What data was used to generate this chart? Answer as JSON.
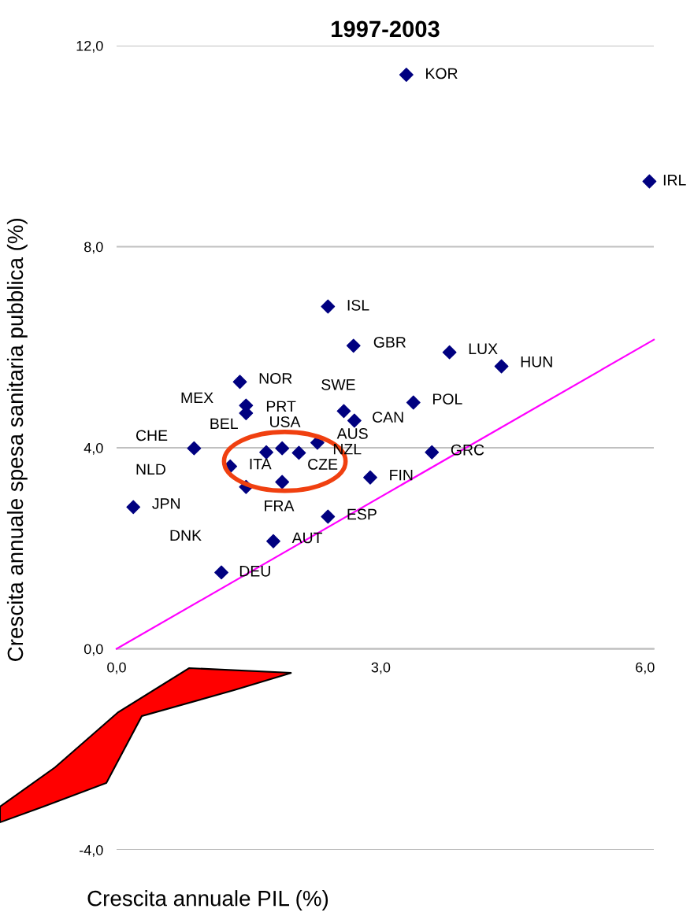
{
  "chart_data": {
    "type": "scatter",
    "title": "1997-2003",
    "xlabel": "Crescita annuale PIL (%)",
    "ylabel": "Crescita annuale spesa sanitaria pubblica (%)",
    "xlim": [
      0,
      6.1
    ],
    "xticks": [
      {
        "value": 0,
        "label": "0,0"
      },
      {
        "value": 3,
        "label": "3,0"
      },
      {
        "value": 6,
        "label": "6,0"
      }
    ],
    "ylim": [
      -4,
      12
    ],
    "yticks": [
      {
        "value": -4,
        "label": "-4,0"
      },
      {
        "value": 0,
        "label": "0,0"
      },
      {
        "value": 4,
        "label": "4,0"
      },
      {
        "value": 8,
        "label": "8,0"
      },
      {
        "value": 12,
        "label": "12,0"
      }
    ],
    "grid": "y",
    "legend": false,
    "series": [
      {
        "marker": "diamond",
        "color": "#000080",
        "x": [
          3.29,
          6.05,
          2.4,
          2.69,
          3.78,
          4.37,
          1.4,
          3.37,
          1.47,
          1.47,
          2.58,
          2.7,
          0.88,
          1.7,
          1.88,
          2.07,
          2.28,
          3.58,
          1.29,
          1.47,
          1.88,
          2.88,
          0.19,
          2.4,
          1.78,
          1.19
        ],
        "values": [
          11.42,
          9.3,
          6.81,
          6.03,
          5.9,
          5.62,
          5.31,
          4.9,
          4.84,
          4.69,
          4.73,
          4.54,
          3.99,
          3.91,
          3.99,
          3.9,
          4.1,
          3.91,
          3.63,
          3.22,
          3.32,
          3.41,
          2.82,
          2.63,
          2.14,
          1.52
        ]
      },
      {
        "type": "line",
        "color": "#ff00ff",
        "x": [
          0,
          6.1
        ],
        "values": [
          0,
          6.15
        ]
      }
    ],
    "annotations": [
      {
        "text": "KOR",
        "x": 3.29,
        "y": 11.42
      },
      {
        "text": "IRL",
        "x": 6.05,
        "y": 9.3
      },
      {
        "text": "ISL",
        "x": 2.4,
        "y": 6.81
      },
      {
        "text": "GBR",
        "x": 2.69,
        "y": 6.03
      },
      {
        "text": "LUX",
        "x": 3.78,
        "y": 5.9
      },
      {
        "text": "HUN",
        "x": 4.37,
        "y": 5.62
      },
      {
        "text": "NOR",
        "x": 1.4,
        "y": 5.31
      },
      {
        "text": "POL",
        "x": 3.37,
        "y": 4.9
      },
      "MEX",
      {
        "text": "PRT",
        "x": 1.47,
        "y": 4.69
      },
      {
        "text": "SWE",
        "x": 2.58,
        "y": 4.73
      },
      {
        "text": "CAN",
        "x": 2.7,
        "y": 4.54
      },
      {
        "text": "AUS",
        "x": 2.7,
        "y": 4.54
      },
      "CHE",
      {
        "text": "BEL",
        "x": 1.7,
        "y": 3.91
      },
      {
        "text": "USA",
        "x": 1.88,
        "y": 3.99
      },
      {
        "text": "NZL",
        "x": 2.28,
        "y": 4.1
      },
      {
        "text": "GRC",
        "x": 3.58,
        "y": 3.91
      },
      {
        "text": "ITA",
        "x": 1.29,
        "y": 3.63
      },
      "NLD",
      {
        "text": "CZE",
        "x": 1.88,
        "y": 3.32
      },
      {
        "text": "FIN",
        "x": 2.88,
        "y": 3.41
      },
      {
        "text": "JPN",
        "x": 0.19,
        "y": 2.82
      },
      {
        "text": "FRA",
        "x": 1.88,
        "y": 3.32
      },
      {
        "text": "ESP",
        "x": 2.4,
        "y": 2.63
      },
      "DNK",
      {
        "text": "AUT",
        "x": 1.78,
        "y": 2.14
      },
      {
        "text": "DEU",
        "x": 1.19,
        "y": 1.52
      }
    ]
  }
}
